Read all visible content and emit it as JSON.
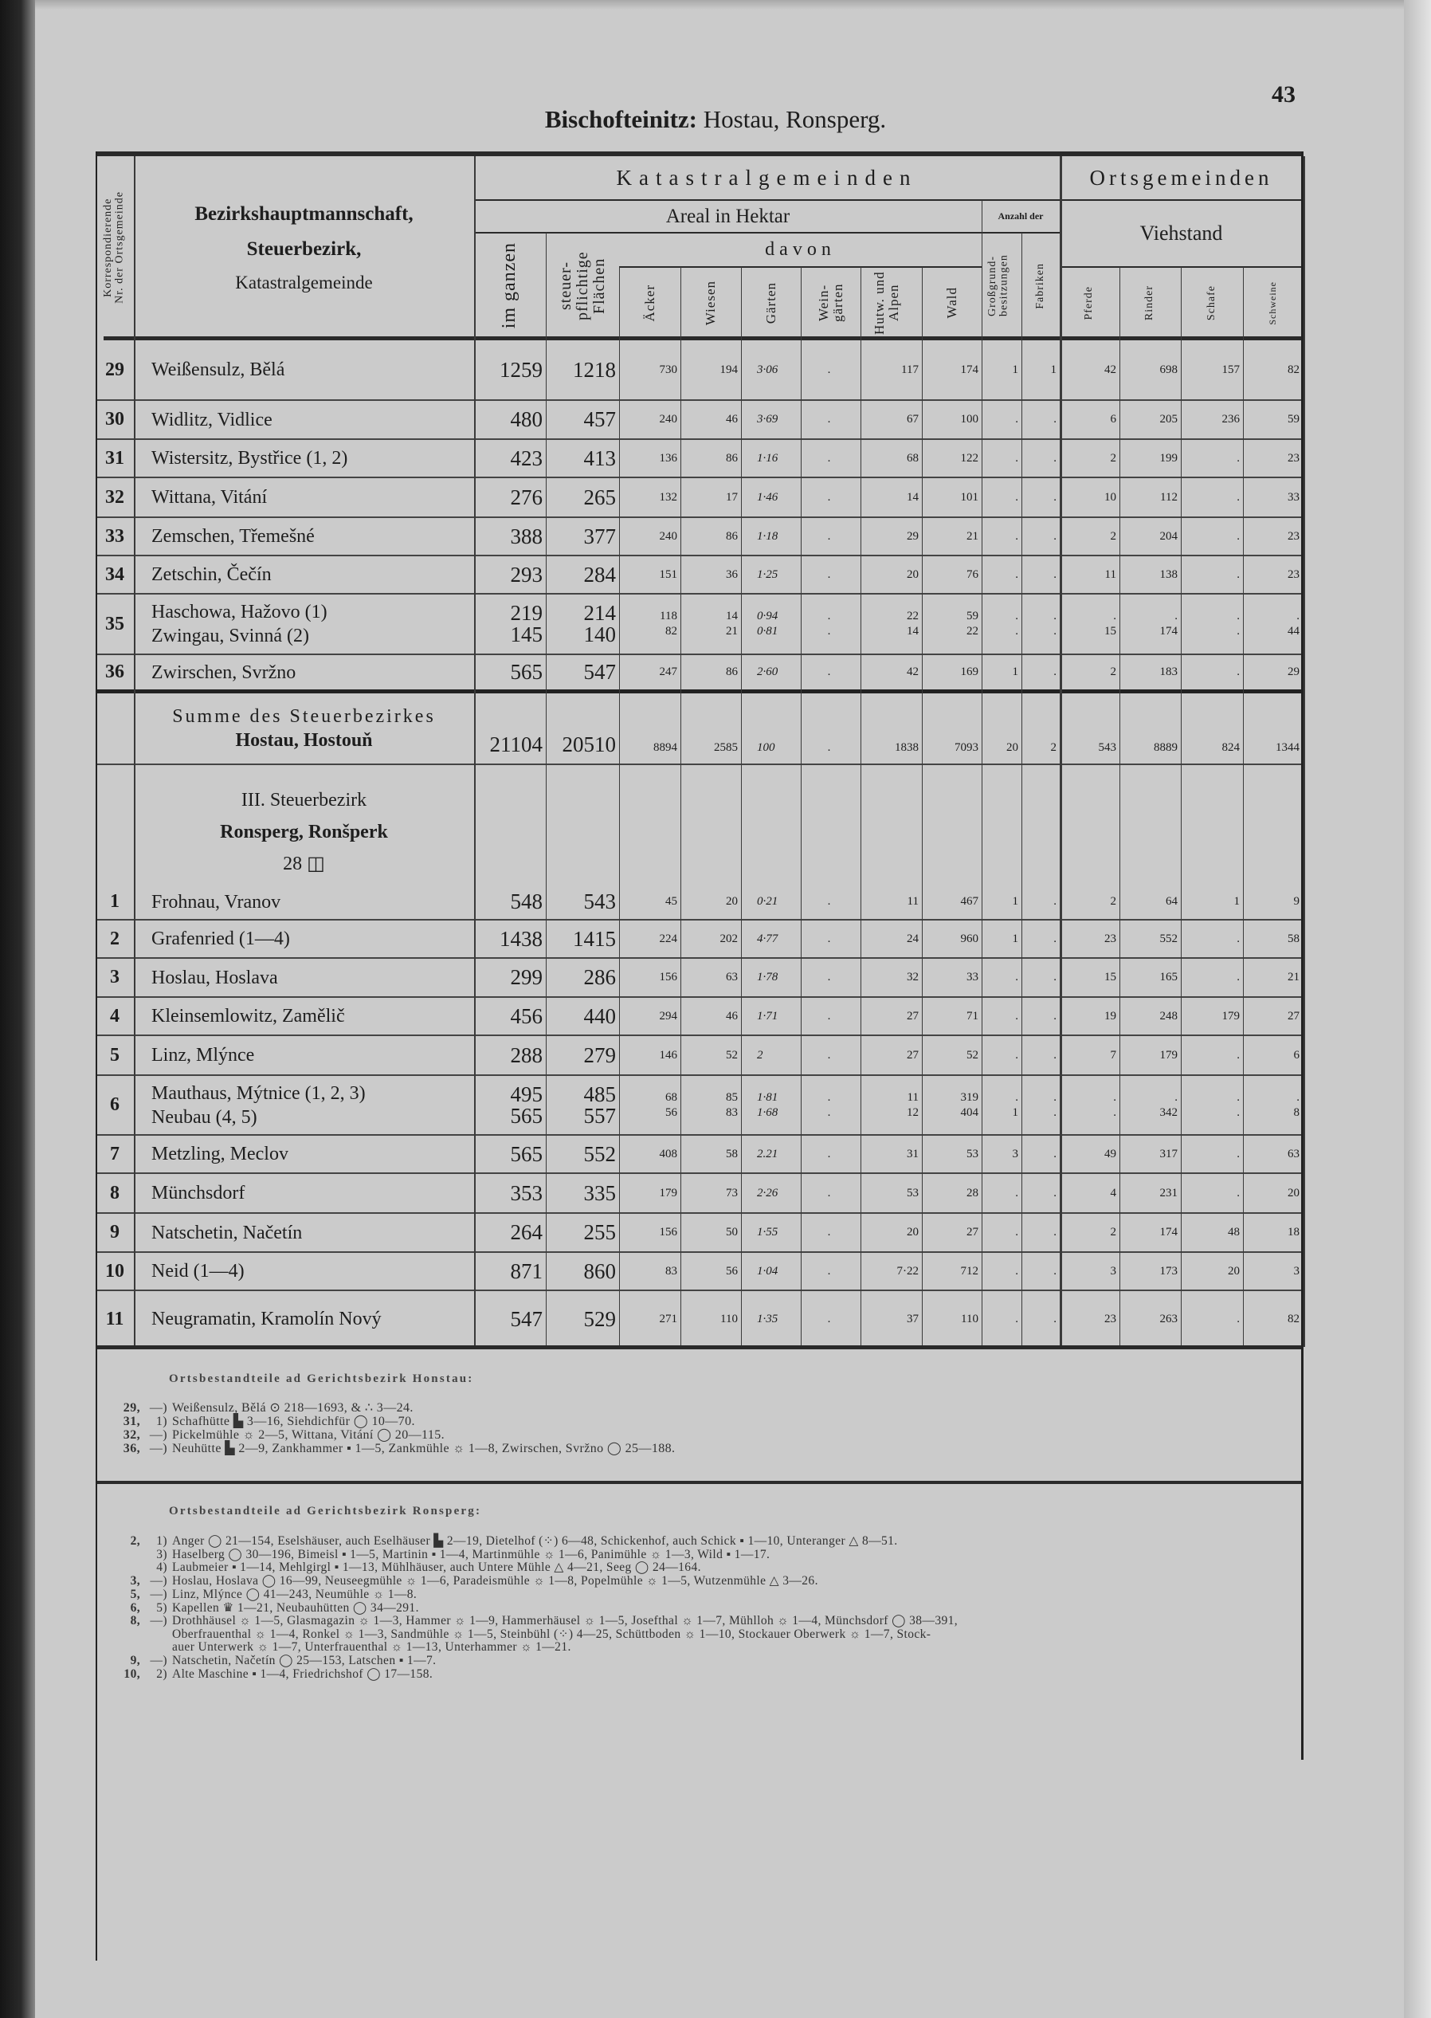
{
  "page": {
    "title_bold": "Bischofteinitz:",
    "title_rest": " Hostau, Ronsperg.",
    "page_number": "43"
  },
  "header": {
    "nr_col": [
      "Korrespondierende",
      "Nr. der Ortsgemeinde"
    ],
    "name_col": [
      "Bezirkshauptmannschaft,",
      "Steuerbezirk,",
      "Katastralgemeinde"
    ],
    "katastral": "Katastralgemeinden",
    "orts": "Ortsgemeinden",
    "areal": "Areal in Hektar",
    "anzahl": "Anzahl der",
    "viehstand": "Viehstand",
    "davon": "davon",
    "im_ganzen": "im ganzen",
    "steuerpflichtig": "steuer-pflichtige Flächen",
    "aecker": "Äcker",
    "wiesen": "Wiesen",
    "gaerten": "Gärten",
    "weingaerten": "Wein-gärten",
    "hutweiden": "Hutw. und Alpen",
    "wald": "Wald",
    "grossgrund": "Großgrund-besitzungen",
    "fabriken": "Fabriken",
    "pferde": "Pferde",
    "rinder": "Rinder",
    "schafe": "Schafe",
    "schweine": "Schweine"
  },
  "table": {
    "rows": [
      {
        "nr": "29",
        "lines": [
          {
            "name": "Weißensulz, Bělá",
            "values": [
              "1259",
              "1218",
              "730",
              "194",
              "3·06",
              ".",
              "117",
              "174",
              "1",
              "1",
              "42",
              "698",
              "157",
              "82"
            ]
          }
        ]
      },
      {
        "nr": "30",
        "lines": [
          {
            "name": "Widlitz, Vidlice",
            "values": [
              "480",
              "457",
              "240",
              "46",
              "3·69",
              ".",
              "67",
              "100",
              ".",
              ".",
              "6",
              "205",
              "236",
              "59"
            ]
          }
        ]
      },
      {
        "nr": "31",
        "lines": [
          {
            "name": "Wistersitz, Bystřice (1, 2)",
            "values": [
              "423",
              "413",
              "136",
              "86",
              "1·16",
              ".",
              "68",
              "122",
              ".",
              ".",
              "2",
              "199",
              ".",
              "23"
            ]
          }
        ]
      },
      {
        "nr": "32",
        "lines": [
          {
            "name": "Wittana, Vitání",
            "values": [
              "276",
              "265",
              "132",
              "17",
              "1·46",
              ".",
              "14",
              "101",
              ".",
              ".",
              "10",
              "112",
              ".",
              "33"
            ]
          }
        ]
      },
      {
        "nr": "33",
        "lines": [
          {
            "name": "Zemschen, Třemešné",
            "values": [
              "388",
              "377",
              "240",
              "86",
              "1·18",
              ".",
              "29",
              "21",
              ".",
              ".",
              "2",
              "204",
              ".",
              "23"
            ]
          }
        ]
      },
      {
        "nr": "34",
        "lines": [
          {
            "name": "Zetschin, Čečín",
            "values": [
              "293",
              "284",
              "151",
              "36",
              "1·25",
              ".",
              "20",
              "76",
              ".",
              ".",
              "11",
              "138",
              ".",
              "23"
            ]
          }
        ]
      },
      {
        "nr": "35",
        "lines": [
          {
            "name": "Haschowa, Hažovo (1)",
            "values": [
              "219",
              "214",
              "118",
              "14",
              "0·94",
              ".",
              "22",
              "59",
              ".",
              ".",
              ".",
              ".",
              ".",
              "."
            ]
          },
          {
            "name": "Zwingau, Svinná (2)",
            "values": [
              "145",
              "140",
              "82",
              "21",
              "0·81",
              ".",
              "14",
              "22",
              ".",
              ".",
              "15",
              "174",
              ".",
              "44"
            ]
          }
        ]
      },
      {
        "nr": "36",
        "lines": [
          {
            "name": "Zwirschen, Svržno",
            "values": [
              "565",
              "547",
              "247",
              "86",
              "2·60",
              ".",
              "42",
              "169",
              "1",
              ".",
              "2",
              "183",
              ".",
              "29"
            ]
          }
        ]
      },
      {
        "nr": "",
        "type": "sum",
        "lines": [
          {
            "name": "Summe des Steuerbezirkes",
            "values": []
          },
          {
            "name": "Hostau, Hostouň",
            "values": [
              "21104",
              "20510",
              "8894",
              "2585",
              "100",
              ".",
              "1838",
              "7093",
              "20",
              "2",
              "543",
              "8889",
              "824",
              "1344"
            ]
          }
        ]
      },
      {
        "nr": "",
        "type": "section",
        "lines": [
          {
            "name": "III. Steuerbezirk",
            "values": []
          },
          {
            "name": "Ronsperg, Ronšperk",
            "values": []
          },
          {
            "name": "28 ◫",
            "values": []
          }
        ]
      },
      {
        "nr": "1",
        "lines": [
          {
            "name": "Frohnau, Vranov",
            "values": [
              "548",
              "543",
              "45",
              "20",
              "0·21",
              ".",
              "11",
              "467",
              "1",
              ".",
              "2",
              "64",
              "1",
              "9"
            ]
          }
        ]
      },
      {
        "nr": "2",
        "lines": [
          {
            "name": "Grafenried (1—4)",
            "values": [
              "1438",
              "1415",
              "224",
              "202",
              "4·77",
              ".",
              "24",
              "960",
              "1",
              ".",
              "23",
              "552",
              ".",
              "58"
            ]
          }
        ]
      },
      {
        "nr": "3",
        "lines": [
          {
            "name": "Hoslau, Hoslava",
            "values": [
              "299",
              "286",
              "156",
              "63",
              "1·78",
              ".",
              "32",
              "33",
              ".",
              ".",
              "15",
              "165",
              ".",
              "21"
            ]
          }
        ]
      },
      {
        "nr": "4",
        "lines": [
          {
            "name": "Kleinsemlowitz, Zamělič",
            "values": [
              "456",
              "440",
              "294",
              "46",
              "1·71",
              ".",
              "27",
              "71",
              ".",
              ".",
              "19",
              "248",
              "179",
              "27"
            ]
          }
        ]
      },
      {
        "nr": "5",
        "lines": [
          {
            "name": "Linz, Mlýnce",
            "values": [
              "288",
              "279",
              "146",
              "52",
              "2",
              ".",
              "27",
              "52",
              ".",
              ".",
              "7",
              "179",
              ".",
              "6"
            ]
          }
        ]
      },
      {
        "nr": "6",
        "lines": [
          {
            "name": "Mauthaus, Mýtnice (1, 2, 3)",
            "values": [
              "495",
              "485",
              "68",
              "85",
              "1·81",
              ".",
              "11",
              "319",
              ".",
              ".",
              ".",
              ".",
              ".",
              "."
            ]
          },
          {
            "name": "Neubau (4, 5)",
            "values": [
              "565",
              "557",
              "56",
              "83",
              "1·68",
              ".",
              "12",
              "404",
              "1",
              ".",
              ".",
              "342",
              ".",
              "8"
            ]
          }
        ]
      },
      {
        "nr": "7",
        "lines": [
          {
            "name": "Metzling, Meclov",
            "values": [
              "565",
              "552",
              "408",
              "58",
              "2.21",
              ".",
              "31",
              "53",
              "3",
              ".",
              "49",
              "317",
              ".",
              "63"
            ]
          }
        ]
      },
      {
        "nr": "8",
        "lines": [
          {
            "name": "Münchsdorf",
            "values": [
              "353",
              "335",
              "179",
              "73",
              "2·26",
              ".",
              "53",
              "28",
              ".",
              ".",
              "4",
              "231",
              ".",
              "20"
            ]
          }
        ]
      },
      {
        "nr": "9",
        "lines": [
          {
            "name": "Natschetin, Načetín",
            "values": [
              "264",
              "255",
              "156",
              "50",
              "1·55",
              ".",
              "20",
              "27",
              ".",
              ".",
              "2",
              "174",
              "48",
              "18"
            ]
          }
        ]
      },
      {
        "nr": "10",
        "lines": [
          {
            "name": "Neid (1—4)",
            "values": [
              "871",
              "860",
              "83",
              "56",
              "1·04",
              ".",
              "7·22",
              "712",
              ".",
              ".",
              "3",
              "173",
              "20",
              "3"
            ]
          }
        ]
      },
      {
        "nr": "11",
        "lines": [
          {
            "name": "Neugramatin, Kramolín Nový",
            "values": [
              "547",
              "529",
              "271",
              "110",
              "1·35",
              ".",
              "37",
              "110",
              ".",
              ".",
              "23",
              "263",
              ".",
              "82"
            ]
          }
        ]
      }
    ]
  },
  "footnotes": [
    {
      "heading": "Ortsbestandteile ad Gerichtsbezirk Honstau:",
      "lines": [
        {
          "num": "29,",
          "ref": "—)",
          "text": "Weißensulz, Bělá ⊙ 218—1693, & ∴ 3—24."
        },
        {
          "num": "31,",
          "ref": "1)",
          "text": "Schafhütte ▙ 3—16, Siehdichfür ◯ 10—70."
        },
        {
          "num": "32,",
          "ref": "—)",
          "text": "Pickelmühle ☼ 2—5, Wittana, Vitání ◯ 20—115."
        },
        {
          "num": "36,",
          "ref": "—)",
          "text": "Neuhütte ▙ 2—9, Zankhammer ▪ 1—5, Zankmühle ☼ 1—8, Zwirschen, Svržno ◯ 25—188."
        }
      ]
    },
    {
      "heading": "Ortsbestandteile ad Gerichtsbezirk Ronsperg:",
      "lines": [
        {
          "num": "2,",
          "ref": "1)",
          "text": "Anger ◯ 21—154, Eselshäuser, auch Eselhäuser ▙ 2—19, Dietelhof (⁘) 6—48, Schickenhof, auch Schick ▪ 1—10, Unteranger △ 8—51."
        },
        {
          "num": "",
          "ref": "3)",
          "text": "Haselberg ◯ 30—196, Bimeisl ▪ 1—5, Martinin ▪ 1—4, Martinmühle ☼ 1—6, Panimühle ☼ 1—3, Wild ▪ 1—17."
        },
        {
          "num": "",
          "ref": "4)",
          "text": "Laubmeier ▪ 1—14, Mehlgirgl ▪ 1—13, Mühlhäuser, auch Untere Mühle △ 4—21, Seeg ◯ 24—164."
        },
        {
          "num": "3,",
          "ref": "—)",
          "text": "Hoslau, Hoslava ◯ 16—99, Neuseegmühle ☼ 1—6, Paradeismühle ☼ 1—8, Popelmühle ☼ 1—5, Wutzenmühle △ 3—26."
        },
        {
          "num": "5,",
          "ref": "—)",
          "text": "Linz, Mlýnce ◯ 41—243, Neumühle ☼ 1—8."
        },
        {
          "num": "6,",
          "ref": "5)",
          "text": "Kapellen ♛ 1—21, Neubauhütten ◯ 34—291."
        },
        {
          "num": "8,",
          "ref": "—)",
          "text": "Drothhäusel ☼ 1—5, Glasmagazin ☼ 1—3, Hammer ☼ 1—9, Hammerhäusel ☼ 1—5, Josefthal ☼ 1—7, Mühlloh ☼ 1—4, Münchsdorf ◯ 38—391,"
        },
        {
          "num": "",
          "ref": "",
          "text": "Oberfrauenthal ☼ 1—4, Ronkel ☼ 1—3, Sandmühle ☼ 1—5, Steinbühl (⁘) 4—25, Schüttboden ☼ 1—10, Stockauer Oberwerk ☼ 1—7, Stock-"
        },
        {
          "num": "",
          "ref": "",
          "text": "auer Unterwerk ☼ 1—7, Unterfrauenthal ☼ 1—13, Unterhammer ☼ 1—21."
        },
        {
          "num": "9,",
          "ref": "—)",
          "text": "Natschetin, Načetín ◯ 25—153, Latschen ▪ 1—7."
        },
        {
          "num": "10,",
          "ref": "2)",
          "text": "Alte Maschine ▪ 1—4, Friedrichshof ◯ 17—158."
        }
      ]
    }
  ]
}
